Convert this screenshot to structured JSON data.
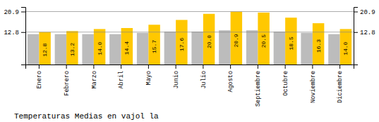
{
  "chart_data": {
    "type": "bar",
    "title": "Temperaturas Medias en vajol la",
    "categories": [
      "Enero",
      "Febrero",
      "Marzo",
      "Abril",
      "Mayo",
      "Junio",
      "Julio",
      "Agosto",
      "Septiembre",
      "Octubre",
      "Noviembre",
      "Diciembre"
    ],
    "series": [
      {
        "color": "#BCBCBC",
        "values": [
          12.0,
          12.0,
          12.0,
          12.0,
          12.5,
          13.0,
          13.0,
          13.5,
          13.5,
          13.0,
          12.5,
          12.0
        ]
      },
      {
        "color": "#FFC800",
        "values": [
          12.8,
          13.2,
          14.0,
          14.4,
          15.7,
          17.6,
          20.0,
          20.9,
          20.5,
          18.5,
          16.3,
          14.0
        ],
        "value_labels": [
          "12.8",
          "13.2",
          "14.0",
          "14.4",
          "15.7",
          "17.6",
          "20.0",
          "20.9",
          "20.5",
          "18.5",
          "16.3",
          "14.0"
        ],
        "data_labels": true
      }
    ],
    "ylim": [
      0,
      22.7
    ],
    "yticks": [
      12.8,
      20.9
    ],
    "grid": true
  }
}
